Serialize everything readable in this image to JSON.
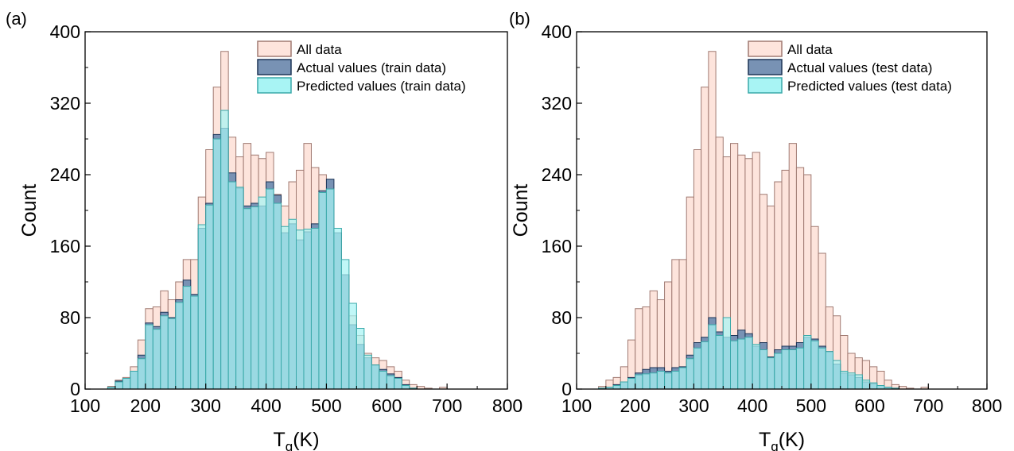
{
  "chart_data": [
    {
      "type": "bar",
      "panel_label": "(a)",
      "xlabel_main": "T",
      "xlabel_sub": "g",
      "xlabel_unit": "(K)",
      "ylabel": "Count",
      "xlim": [
        100,
        800
      ],
      "ylim": [
        0,
        400
      ],
      "xticks": [
        100,
        200,
        300,
        400,
        500,
        600,
        700,
        800
      ],
      "yticks": [
        0,
        80,
        160,
        240,
        320,
        400
      ],
      "bin_width": 12.5,
      "bin_start": 125,
      "legend": [
        "All data",
        "Actual values (train data)",
        "Predicted values (train data)"
      ],
      "legend_position": "top-right",
      "colors": {
        "all": "#fde4dc",
        "all_edge": "#a07a72",
        "actual": "#7892b4",
        "actual_edge": "#1d3557",
        "pred": "#a8f4f4",
        "pred_edge": "#3aa9aa"
      },
      "series": [
        {
          "name": "All data",
          "values": [
            0,
            3,
            10,
            13,
            25,
            55,
            90,
            92,
            110,
            100,
            120,
            145,
            145,
            215,
            268,
            338,
            378,
            282,
            260,
            275,
            262,
            258,
            265,
            218,
            205,
            232,
            245,
            275,
            248,
            240,
            182,
            152,
            92,
            82,
            60,
            40,
            35,
            32,
            25,
            20,
            10,
            5,
            3,
            1,
            0,
            2,
            0,
            0,
            0,
            0,
            0,
            0,
            0,
            0,
            0,
            0
          ]
        },
        {
          "name": "Actual values (train data)",
          "values": [
            0,
            2,
            9,
            12,
            20,
            38,
            74,
            70,
            86,
            80,
            100,
            122,
            106,
            180,
            208,
            285,
            292,
            242,
            225,
            205,
            208,
            205,
            232,
            217,
            175,
            185,
            167,
            176,
            185,
            222,
            235,
            175,
            128,
            72,
            50,
            35,
            27,
            22,
            17,
            13,
            5,
            1,
            0,
            0,
            0,
            0,
            0,
            0,
            0,
            0,
            0,
            0,
            0,
            0,
            0,
            0
          ]
        },
        {
          "name": "Predicted values (train data)",
          "values": [
            0,
            2,
            8,
            12,
            20,
            34,
            72,
            67,
            82,
            79,
            97,
            115,
            104,
            184,
            206,
            280,
            312,
            232,
            226,
            202,
            204,
            215,
            224,
            208,
            182,
            190,
            178,
            179,
            180,
            220,
            224,
            180,
            145,
            96,
            68,
            38,
            27,
            20,
            15,
            12,
            4,
            1,
            0,
            0,
            0,
            0,
            0,
            0,
            0,
            0,
            0,
            0,
            0,
            0,
            0,
            0
          ]
        }
      ]
    },
    {
      "type": "bar",
      "panel_label": "(b)",
      "xlabel_main": "T",
      "xlabel_sub": "g",
      "xlabel_unit": "(K)",
      "ylabel": "Count",
      "xlim": [
        100,
        800
      ],
      "ylim": [
        0,
        400
      ],
      "xticks": [
        100,
        200,
        300,
        400,
        500,
        600,
        700,
        800
      ],
      "yticks": [
        0,
        80,
        160,
        240,
        320,
        400
      ],
      "bin_width": 12.5,
      "bin_start": 125,
      "legend": [
        "All data",
        "Actual values (test data)",
        "Predicted values (test data)"
      ],
      "legend_position": "top-right",
      "colors": {
        "all": "#fde4dc",
        "all_edge": "#a07a72",
        "actual": "#7892b4",
        "actual_edge": "#1d3557",
        "pred": "#a8f4f4",
        "pred_edge": "#3aa9aa"
      },
      "series": [
        {
          "name": "All data",
          "values": [
            0,
            3,
            10,
            13,
            25,
            55,
            90,
            92,
            110,
            100,
            120,
            145,
            145,
            215,
            268,
            338,
            378,
            282,
            260,
            275,
            262,
            258,
            265,
            218,
            205,
            232,
            245,
            275,
            248,
            240,
            182,
            152,
            92,
            82,
            60,
            40,
            35,
            32,
            25,
            20,
            10,
            5,
            3,
            1,
            0,
            2,
            0,
            0,
            0,
            0,
            0,
            0,
            0,
            0,
            0,
            0
          ]
        },
        {
          "name": "Actual values (test data)",
          "values": [
            0,
            1,
            2,
            5,
            8,
            13,
            18,
            22,
            24,
            24,
            20,
            24,
            25,
            38,
            52,
            58,
            80,
            64,
            58,
            60,
            66,
            62,
            48,
            52,
            36,
            44,
            48,
            48,
            52,
            58,
            56,
            48,
            42,
            28,
            18,
            16,
            13,
            8,
            6,
            4,
            2,
            1,
            0,
            0,
            0,
            0,
            0,
            0,
            0,
            0,
            0,
            0,
            0,
            0,
            0,
            0
          ]
        },
        {
          "name": "Predicted values (test data)",
          "values": [
            0,
            1,
            2,
            4,
            8,
            12,
            16,
            17,
            18,
            20,
            18,
            20,
            24,
            34,
            46,
            53,
            72,
            60,
            80,
            54,
            56,
            58,
            50,
            44,
            35,
            40,
            44,
            44,
            46,
            60,
            54,
            46,
            42,
            32,
            20,
            18,
            16,
            10,
            7,
            4,
            2,
            1,
            0,
            0,
            0,
            0,
            0,
            0,
            0,
            0,
            0,
            0,
            0,
            0,
            0,
            0
          ]
        }
      ]
    }
  ]
}
